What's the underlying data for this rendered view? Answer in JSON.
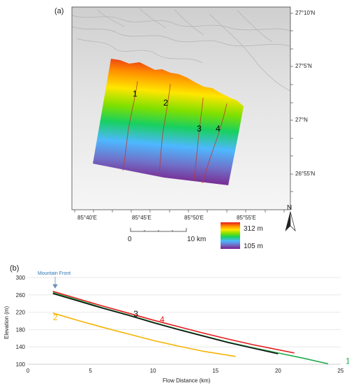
{
  "panel_a": {
    "label": "(a)",
    "lat_labels": [
      "27°10'N",
      "27°5'N",
      "27°N",
      "26°55'N"
    ],
    "lon_labels": [
      "85°40'E",
      "85°45'E",
      "85°50'E",
      "85°55'E"
    ],
    "legend": {
      "max": "312 m",
      "min": "105 m",
      "colors": [
        "#e31a1c",
        "#ff8c00",
        "#ffe600",
        "#7fe000",
        "#18d060",
        "#4db8ff",
        "#7070c8",
        "#7a1f8a"
      ]
    },
    "scale": {
      "start": "0",
      "end": "10 km"
    },
    "north": "N",
    "stream_labels": [
      "1",
      "2",
      "3",
      "4"
    ]
  },
  "panel_b": {
    "label": "(b)",
    "annotation": "Mountain Front"
  },
  "chart_data": {
    "type": "line",
    "xlabel": "Flow Distance (km)",
    "ylabel": "Elevation (m)",
    "xlim": [
      0,
      25
    ],
    "ylim": [
      100,
      300
    ],
    "xticks": [
      "0",
      "5",
      "10",
      "15",
      "20",
      "25"
    ],
    "yticks": [
      "100",
      "140",
      "180",
      "220",
      "260",
      "300"
    ],
    "series": [
      {
        "name": "1",
        "color": "#1faa4a",
        "x": [
          2,
          4,
          6,
          8,
          10,
          12,
          14,
          16,
          18,
          20,
          22,
          24
        ],
        "y": [
          265,
          248,
          230,
          214,
          197,
          181,
          166,
          151,
          138,
          126,
          114,
          101
        ]
      },
      {
        "name": "2",
        "color": "#f5b400",
        "x": [
          2,
          4,
          6,
          8,
          10,
          12,
          14,
          16.6
        ],
        "y": [
          218,
          201,
          185,
          170,
          155,
          142,
          130,
          118
        ]
      },
      {
        "name": "3",
        "color": "#111111",
        "x": [
          2,
          4,
          6,
          8,
          10,
          12,
          14,
          16,
          18,
          20
        ],
        "y": [
          263,
          246,
          229,
          213,
          196,
          180,
          165,
          150,
          137,
          124
        ]
      },
      {
        "name": "4",
        "color": "#e41a1c",
        "x": [
          2,
          4,
          6,
          8,
          10,
          12,
          14,
          16,
          18,
          21.3
        ],
        "y": [
          268,
          251,
          234,
          218,
          202,
          187,
          172,
          158,
          145,
          126
        ]
      }
    ]
  }
}
